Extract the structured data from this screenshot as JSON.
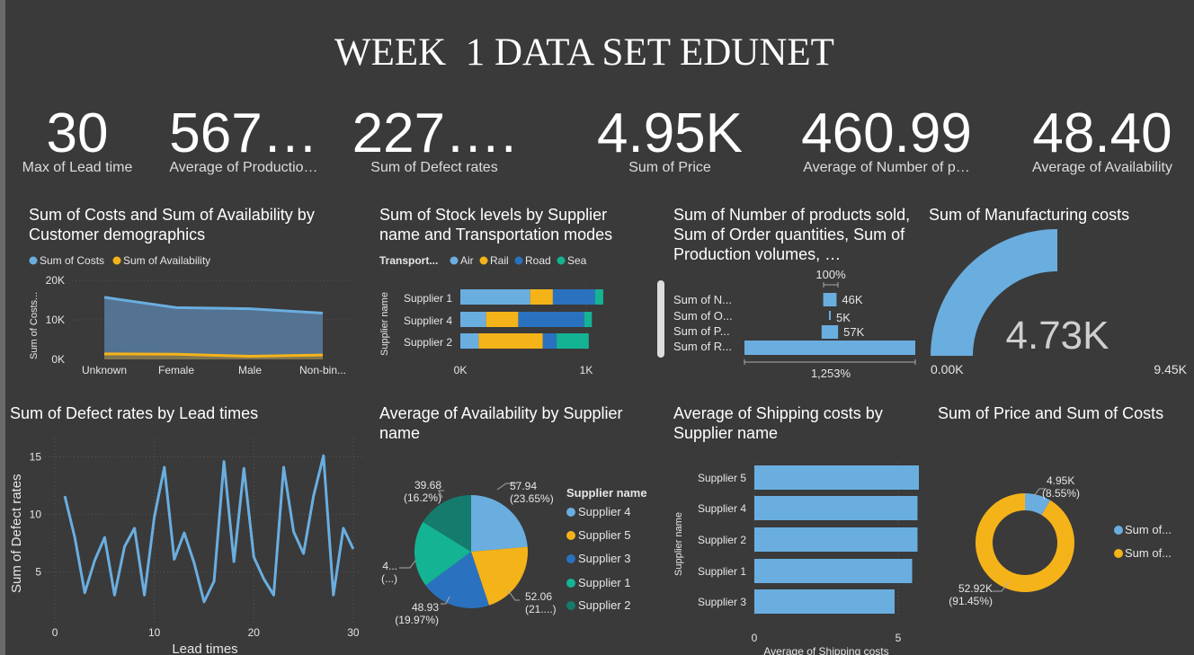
{
  "title": "WEEK  1 DATA SET EDUNET",
  "kpis": [
    {
      "value": "30",
      "label": "Max of Lead time"
    },
    {
      "value": "567…",
      "label": "Average of Productio…"
    },
    {
      "value": "227….",
      "label": "Sum of Defect rates"
    },
    {
      "value": "4.95K",
      "label": "Sum of Price"
    },
    {
      "value": "460.99",
      "label": "Average of Number of p…"
    },
    {
      "value": "48.40",
      "label": "Average of Availability"
    }
  ],
  "colors": {
    "blue": "#6aaee0",
    "yellow": "#f5b31a",
    "darkblue": "#2a72bf",
    "teal": "#14b394",
    "darkteal": "#157b6d",
    "background": "#3a3a3a"
  },
  "v1": {
    "title": "Sum of Costs and Sum of Availability by Customer demographics",
    "legend": [
      "Sum of Costs",
      "Sum of Availability"
    ],
    "ylabel": "Sum of Costs...",
    "yticks": [
      "20K",
      "10K",
      "0K"
    ],
    "chart_data": {
      "type": "area",
      "categories": [
        "Unknown",
        "Female",
        "Male",
        "Non-bin..."
      ],
      "series": [
        {
          "name": "Sum of Costs",
          "values": [
            15700,
            13100,
            12800,
            11700
          ]
        },
        {
          "name": "Sum of Availability",
          "values": [
            1400,
            1300,
            800,
            1100
          ]
        }
      ],
      "ylim": [
        0,
        20000
      ]
    }
  },
  "v2": {
    "title": "Sum of Stock levels by Supplier name and Transportation modes",
    "legend_title": "Transport...",
    "legend": [
      "Air",
      "Rail",
      "Road",
      "Sea"
    ],
    "ylabel": "Supplier name",
    "xticks": [
      "0K",
      "1K"
    ],
    "chart_data": {
      "type": "bar",
      "categories": [
        "Supplier 1",
        "Supplier 4",
        "Supplier 2"
      ],
      "series": [
        {
          "name": "Air",
          "values": [
            555,
            205,
            145
          ]
        },
        {
          "name": "Rail",
          "values": [
            180,
            255,
            510
          ]
        },
        {
          "name": "Road",
          "values": [
            335,
            525,
            110
          ]
        },
        {
          "name": "Sea",
          "values": [
            65,
            60,
            255
          ]
        }
      ],
      "xlim": [
        0,
        1100
      ]
    }
  },
  "v3": {
    "title": "Sum of Number of products sold, Sum of Order quantities, Sum of Production volumes, …",
    "top_label": "100%",
    "bottom_label": "1,253%",
    "chart_data": {
      "type": "bar",
      "categories": [
        "Sum of N...",
        "Sum of O...",
        "Sum of P...",
        "Sum of R..."
      ],
      "values": [
        46,
        5,
        57,
        590
      ],
      "data_labels": [
        "46K",
        "5K",
        "57K",
        ""
      ]
    }
  },
  "v4": {
    "title": "Sum of Manufacturing costs",
    "value": "4.73K",
    "min": "0.00K",
    "max": "9.45K",
    "fraction": 0.5
  },
  "v5": {
    "title": "Sum of Defect rates by Lead times",
    "xlabel": "Lead times",
    "ylabel": "Sum of Defect rates",
    "chart_data": {
      "type": "line",
      "x": [
        1,
        2,
        3,
        4,
        5,
        6,
        7,
        8,
        9,
        10,
        11,
        12,
        13,
        14,
        15,
        16,
        17,
        18,
        19,
        20,
        21,
        22,
        23,
        24,
        25,
        26,
        27,
        28,
        29,
        30
      ],
      "y": [
        11.6,
        8.0,
        3.2,
        6.0,
        8.0,
        3.0,
        7.2,
        8.8,
        3.0,
        9.8,
        14.1,
        6.1,
        8.4,
        5.8,
        2.4,
        4.2,
        14.6,
        5.9,
        14.0,
        6.3,
        4.4,
        3.0,
        14.1,
        8.5,
        6.6,
        11.6,
        15.1,
        3.0,
        8.8,
        7.0
      ],
      "xticks": [
        0,
        10,
        20,
        30
      ],
      "yticks": [
        5,
        10,
        15
      ],
      "xlim": [
        -1,
        31
      ],
      "ylim": [
        0.6,
        16.6
      ]
    }
  },
  "v6": {
    "title": "Average of Availability by Supplier name",
    "legend_title": "Supplier name",
    "legend": [
      "Supplier 4",
      "Supplier 5",
      "Supplier 3",
      "Supplier 1",
      "Supplier 2"
    ],
    "chart_data": {
      "type": "pie",
      "labels": [
        "Supplier 4",
        "Supplier 5",
        "Supplier 3",
        "Supplier 1",
        "Supplier 2"
      ],
      "values": [
        57.94,
        52.06,
        48.93,
        46.5,
        39.68
      ],
      "data_labels": [
        [
          "57.94",
          "(23.65%)"
        ],
        [
          "52.06",
          "(21....)"
        ],
        [
          "48.93",
          "(19.97%)"
        ],
        [
          "4...",
          "(...)"
        ],
        [
          "39.68",
          "(16.2%)"
        ]
      ]
    }
  },
  "v7": {
    "title": "Average of Shipping costs by Supplier name",
    "xlabel": "Average of Shipping costs",
    "ylabel": "Supplier name",
    "xticks": [
      "0",
      "5"
    ],
    "chart_data": {
      "type": "bar",
      "categories": [
        "Supplier 5",
        "Supplier 4",
        "Supplier 2",
        "Supplier 1",
        "Supplier 3"
      ],
      "values": [
        6.1,
        6.05,
        6.05,
        5.85,
        5.2
      ],
      "xlim": [
        0,
        6.1
      ]
    }
  },
  "v8": {
    "title": "Sum of Price and Sum of Costs",
    "legend": [
      "Sum of...",
      "Sum of..."
    ],
    "chart_data": {
      "type": "pie",
      "labels": [
        "Sum of Price",
        "Sum of Costs"
      ],
      "values": [
        4950,
        52920
      ],
      "data_labels": [
        [
          "4.95K",
          "(8.55%)"
        ],
        [
          "52.92K",
          "(91.45%)"
        ]
      ]
    }
  }
}
